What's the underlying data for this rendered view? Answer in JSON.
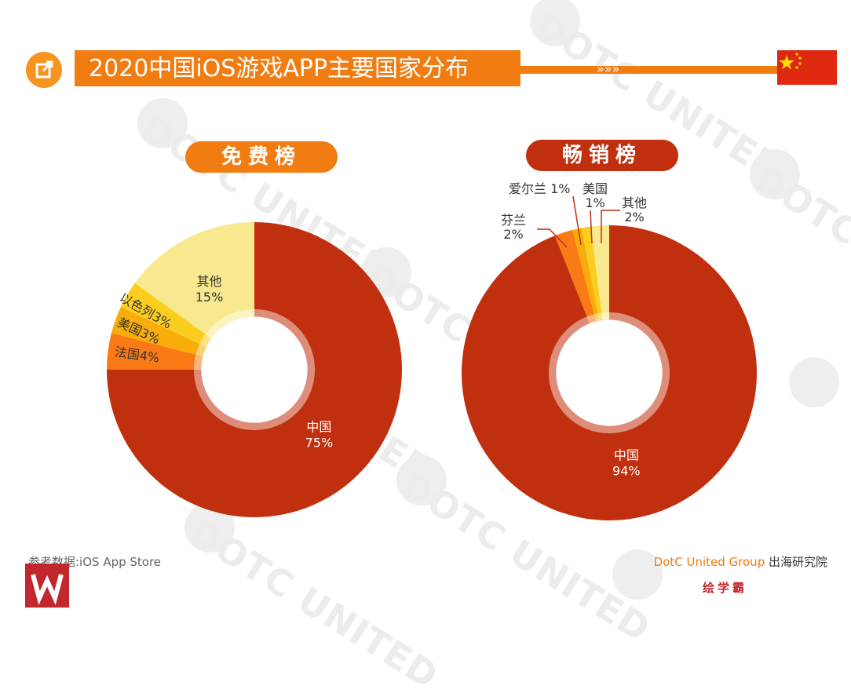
{
  "header": {
    "title": "2020中国iOS游戏APP主要国家分布",
    "chevrons": "»»»",
    "flag_colors": {
      "red": "#de2910",
      "star": "#ffde00"
    }
  },
  "watermark": {
    "text": "DOTC UNITED"
  },
  "chart_data": [
    {
      "type": "pie",
      "title": "免费榜",
      "center_hole": true,
      "slices": [
        {
          "label": "中国",
          "value": 75,
          "text": "75%",
          "color": "#c1300e"
        },
        {
          "label": "法国",
          "value": 4,
          "text": "4%",
          "color": "#fa7a16"
        },
        {
          "label": "美国",
          "value": 3,
          "text": "3%",
          "color": "#f8ad0a"
        },
        {
          "label": "以色列",
          "value": 3,
          "text": "3%",
          "color": "#fbcd1e"
        },
        {
          "label": "其他",
          "value": 15,
          "text": "15%",
          "color": "#f8e98e"
        }
      ]
    },
    {
      "type": "pie",
      "title": "畅销榜",
      "center_hole": true,
      "slices": [
        {
          "label": "中国",
          "value": 94,
          "text": "94%",
          "color": "#c1300e"
        },
        {
          "label": "芬兰",
          "value": 2,
          "text": "2%",
          "color": "#fa7a16"
        },
        {
          "label": "爱尔兰",
          "value": 1,
          "text": "1%",
          "color": "#f8ad0a"
        },
        {
          "label": "美国",
          "value": 1,
          "text": "1%",
          "color": "#fbcd1e"
        },
        {
          "label": "其他",
          "value": 2,
          "text": "2%",
          "color": "#f8e98e"
        }
      ]
    }
  ],
  "footer": {
    "source": "参考数据:iOS App Store",
    "brand_en": "DotC United Group",
    "brand_cn": " 出海研究院",
    "logo_text": "绘学霸"
  }
}
